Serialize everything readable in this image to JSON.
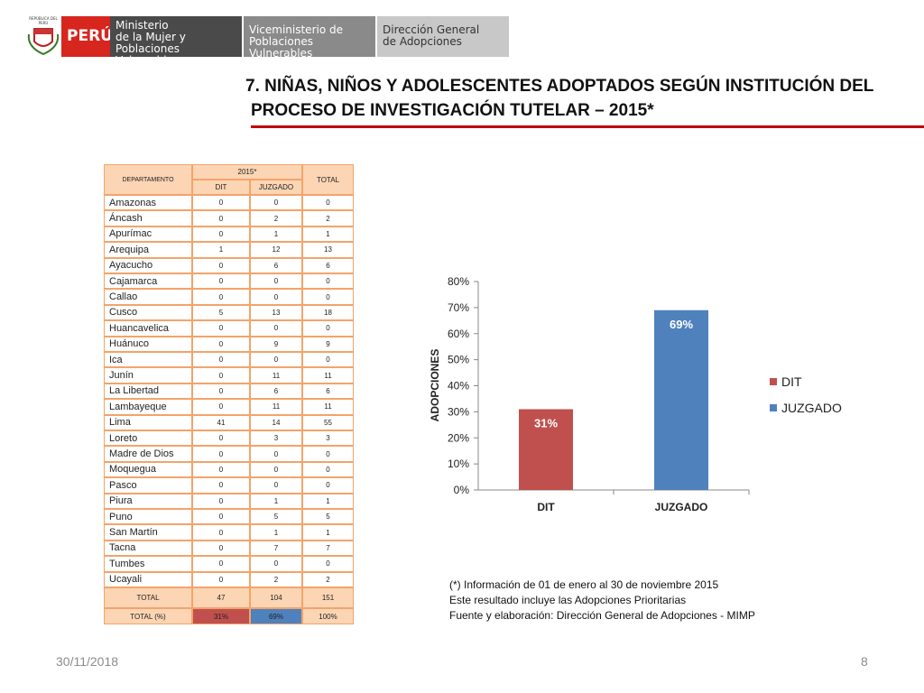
{
  "header": {
    "emblem": "REPÚBLICA DEL PERÚ",
    "country": "PERÚ",
    "ministry": [
      "Ministerio",
      "de la Mujer y",
      "Poblaciones Vulnerables"
    ],
    "vice": [
      "Viceministerio de",
      "Poblaciones Vulnerables"
    ],
    "direction": [
      "Dirección General",
      "de Adopciones"
    ]
  },
  "title": [
    "7. NIÑAS, NIÑOS Y ADOLESCENTES ADOPTADOS SEGÚN INSTITUCIÓN DEL",
    "PROCESO DE INVESTIGACIÓN TUTELAR – 2015*"
  ],
  "table": {
    "headers": [
      "DEPARTAMENTO",
      "2015*",
      "TOTAL"
    ],
    "subheaders": [
      "DIT",
      "JUZGADO"
    ],
    "rows": [
      [
        "Amazonas",
        0,
        0,
        0
      ],
      [
        "Áncash",
        0,
        2,
        2
      ],
      [
        "Apurímac",
        0,
        1,
        1
      ],
      [
        "Arequipa",
        1,
        12,
        13
      ],
      [
        "Ayacucho",
        0,
        6,
        6
      ],
      [
        "Cajamarca",
        0,
        0,
        0
      ],
      [
        "Callao",
        0,
        0,
        0
      ],
      [
        "Cusco",
        5,
        13,
        18
      ],
      [
        "Huancavelica",
        0,
        0,
        0
      ],
      [
        "Huánuco",
        0,
        9,
        9
      ],
      [
        "Ica",
        0,
        0,
        0
      ],
      [
        "Junín",
        0,
        11,
        11
      ],
      [
        "La Libertad",
        0,
        6,
        6
      ],
      [
        "Lambayeque",
        0,
        11,
        11
      ],
      [
        "Lima",
        41,
        14,
        55
      ],
      [
        "Loreto",
        0,
        3,
        3
      ],
      [
        "Madre de Dios",
        0,
        0,
        0
      ],
      [
        "Moquegua",
        0,
        0,
        0
      ],
      [
        "Pasco",
        0,
        0,
        0
      ],
      [
        "Piura",
        0,
        1,
        1
      ],
      [
        "Puno",
        0,
        5,
        5
      ],
      [
        "San Martín",
        0,
        1,
        1
      ],
      [
        "Tacna",
        0,
        7,
        7
      ],
      [
        "Tumbes",
        0,
        0,
        0
      ],
      [
        "Ucayali",
        0,
        2,
        2
      ]
    ],
    "total_row": [
      "TOTAL",
      47,
      104,
      151
    ],
    "pct_row": [
      "TOTAL (%)",
      "31%",
      "69%",
      "100%"
    ]
  },
  "chart_data": {
    "type": "bar",
    "ylabel": "ADOPCIONES",
    "categories": [
      "DIT",
      "JUZGADO"
    ],
    "values": [
      31,
      69
    ],
    "value_labels": [
      "31%",
      "69%"
    ],
    "colors": [
      "#c0504d",
      "#4f81bd"
    ],
    "ylim": [
      0,
      80
    ],
    "yticks": [
      {
        "value": 0,
        "label": "0%"
      },
      {
        "value": 10,
        "label": "10%"
      },
      {
        "value": 20,
        "label": "20%"
      },
      {
        "value": 30,
        "label": "30%"
      },
      {
        "value": 40,
        "label": "40%"
      },
      {
        "value": 50,
        "label": "50%"
      },
      {
        "value": 60,
        "label": "60%"
      },
      {
        "value": 70,
        "label": "70%"
      },
      {
        "value": 80,
        "label": "80%"
      }
    ],
    "legend": "right"
  },
  "notes": [
    "(*) Información de 01 de enero al 30 de noviembre 2015",
    "Este resultado incluye las Adopciones Prioritarias",
    "Fuente y elaboración: Dirección General de Adopciones - MIMP"
  ],
  "footer": {
    "date": "30/11/2018",
    "page": "8"
  }
}
